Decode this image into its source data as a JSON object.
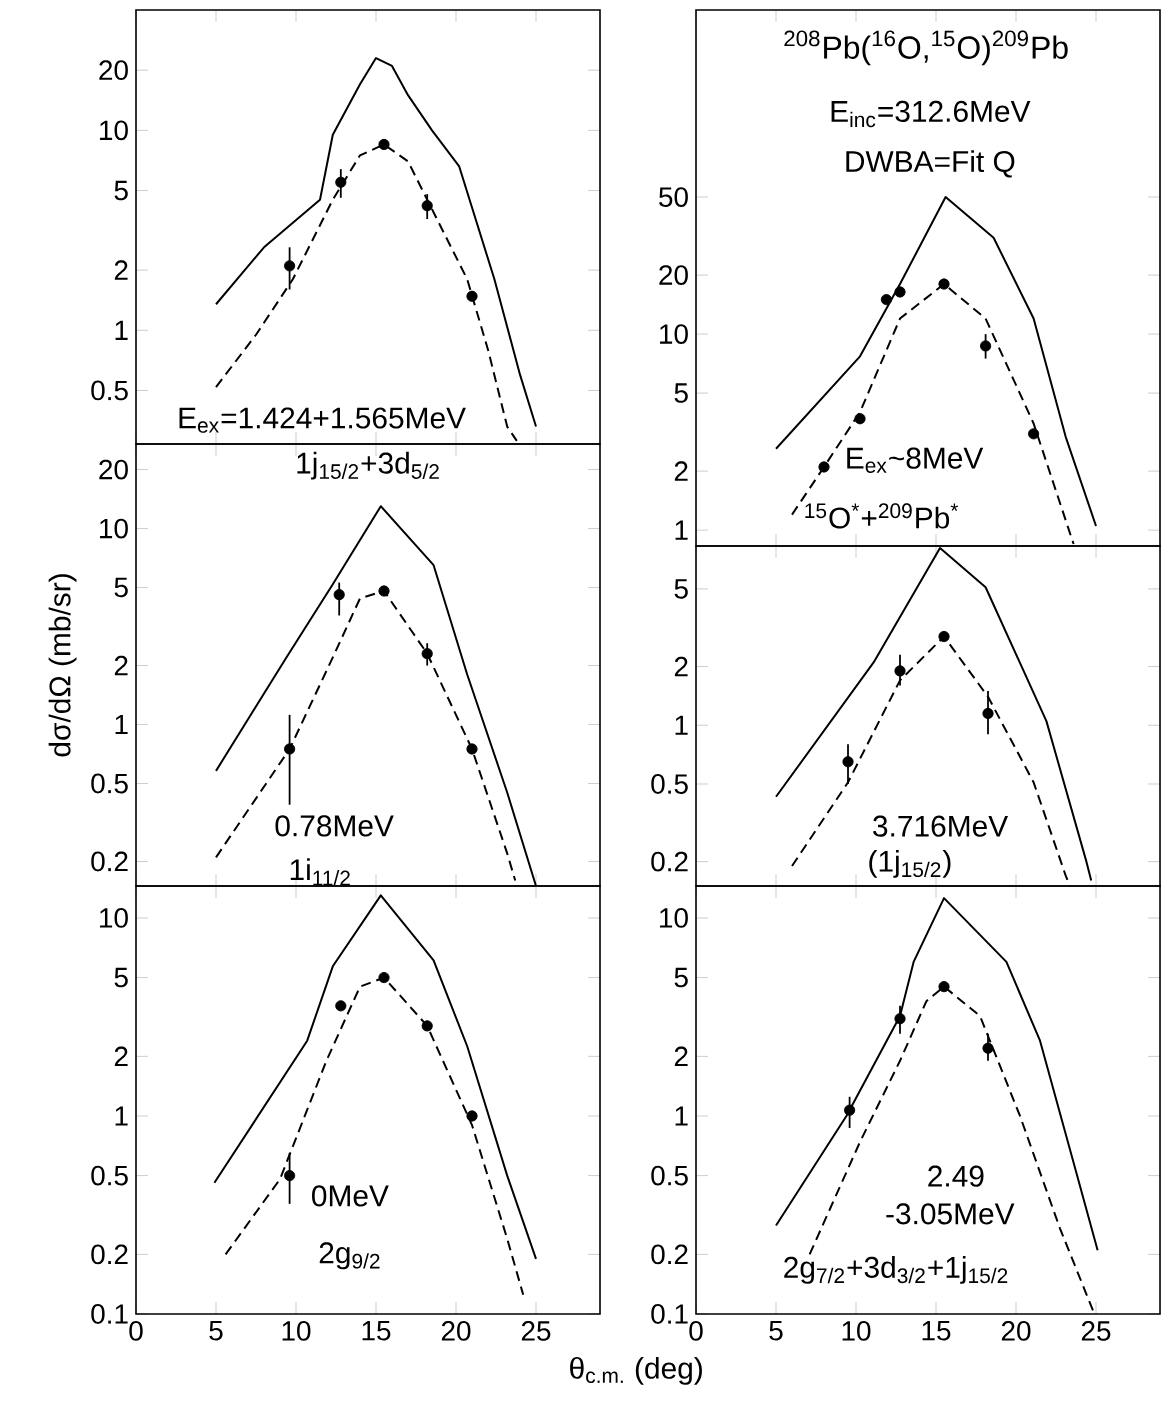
{
  "chart_data": [
    {
      "type": "line",
      "log": true,
      "xlim": [
        0,
        29
      ],
      "ylim": [
        0.27,
        40
      ],
      "xticks": [
        0,
        5,
        10,
        15,
        20,
        25
      ],
      "yticks": [
        0.5,
        1,
        2,
        5,
        10,
        20
      ],
      "tick_labels": "y",
      "annotations": [
        "E$_{ex}$=1.424+1.565MeV",
        "1j$_{15/2}$+3d$_{5/2}$"
      ],
      "series": [
        {
          "color": "#000000",
          "line_style": "solid",
          "x": [
            5,
            8,
            11.5,
            12.3,
            14,
            15,
            16,
            17,
            18.5,
            20.2,
            22.4,
            24,
            25
          ],
          "values": [
            1.35,
            2.6,
            4.5,
            9.5,
            17,
            23,
            21,
            15,
            10,
            6.6,
            1.8,
            0.6,
            0.33
          ]
        },
        {
          "color": "#000000",
          "line_style": "dashed",
          "x": [
            5,
            7.5,
            9.8,
            12.3,
            14,
            15.5,
            17,
            18.2,
            20.7,
            22,
            23.2,
            23.8
          ],
          "values": [
            0.52,
            0.95,
            1.8,
            4.5,
            7.5,
            8.5,
            7,
            4.5,
            1.8,
            0.8,
            0.33,
            0.28
          ]
        },
        {
          "type": "scatter",
          "color": "#000000",
          "marker": "circle",
          "x": [
            9.6,
            12.8,
            15.5,
            18.2,
            21
          ],
          "values": [
            2.1,
            5.5,
            8.5,
            4.2,
            1.48
          ],
          "errors": [
            [
              1.6,
              2.6
            ],
            [
              4.6,
              6.4
            ],
            null,
            [
              3.6,
              4.8
            ],
            null
          ]
        }
      ]
    },
    {
      "type": "line",
      "log": true,
      "title": "$^{208}$Pb($^{16}$O,$^{15}$O)$^{209}$Pb",
      "xlim": [
        0,
        29
      ],
      "ylim": [
        0.83,
        450
      ],
      "xticks": [
        0,
        5,
        10,
        15,
        20,
        25
      ],
      "yticks": [
        1,
        2,
        5,
        10,
        20,
        50
      ],
      "tick_labels": "y",
      "annotations": [
        "E$_{inc}$=312.6MeV",
        "DWBA=Fit Q",
        "E$_{ex}$~8MeV",
        "$^{15}$O$^{*}$+$^{209}$Pb$^{*}$"
      ],
      "series": [
        {
          "color": "#000000",
          "line_style": "solid",
          "x": [
            5,
            10.25,
            12.75,
            15.6,
            18.6,
            21.1,
            23.1,
            25
          ],
          "values": [
            2.6,
            7.7,
            18,
            50,
            31,
            12,
            3,
            1.05
          ]
        },
        {
          "color": "#000000",
          "line_style": "dashed",
          "x": [
            6,
            8,
            10.25,
            12.75,
            15.5,
            18.1,
            21.1,
            23.4,
            23.6
          ],
          "values": [
            1.2,
            2.1,
            4,
            12,
            18,
            12,
            3.5,
            0.95,
            0.85
          ]
        },
        {
          "type": "scatter",
          "color": "#000000",
          "marker": "circle",
          "x": [
            8,
            10.25,
            11.9,
            12.75,
            15.5,
            18.1,
            21.1
          ],
          "values": [
            2.1,
            3.7,
            15,
            16.4,
            18,
            8.7,
            3.1
          ],
          "errors": [
            null,
            null,
            null,
            null,
            null,
            [
              7.5,
              10
            ],
            null
          ]
        }
      ]
    },
    {
      "type": "line",
      "log": true,
      "ylabel": "dσ/dΩ (mb/sr)",
      "xlim": [
        0,
        29
      ],
      "ylim": [
        0.15,
        27
      ],
      "xticks": [
        0,
        5,
        10,
        15,
        20,
        25
      ],
      "yticks": [
        0.2,
        0.5,
        1,
        2,
        5,
        10,
        20
      ],
      "tick_labels": "y",
      "annotations": [
        "0.78MeV",
        "1i$_{11/2}$"
      ],
      "series": [
        {
          "color": "#000000",
          "line_style": "solid",
          "x": [
            5,
            9.4,
            12.3,
            15.3,
            18.6,
            20.7,
            23.2,
            25
          ],
          "values": [
            0.58,
            2.2,
            5.2,
            13,
            6.5,
            1.8,
            0.45,
            0.15
          ]
        },
        {
          "color": "#000000",
          "line_style": "dashed",
          "x": [
            5,
            9.6,
            12.3,
            14,
            15.5,
            18.2,
            21,
            23.2,
            23.7
          ],
          "values": [
            0.21,
            0.75,
            2.2,
            4.4,
            4.8,
            2.3,
            0.75,
            0.22,
            0.16
          ]
        },
        {
          "type": "scatter",
          "color": "#000000",
          "marker": "circle",
          "x": [
            9.6,
            12.7,
            15.5,
            18.2,
            21
          ],
          "values": [
            0.75,
            4.6,
            4.8,
            2.3,
            0.75
          ],
          "errors": [
            [
              0.39,
              1.12
            ],
            [
              3.6,
              5.3
            ],
            null,
            [
              2,
              2.6
            ],
            null
          ]
        }
      ]
    },
    {
      "type": "line",
      "log": true,
      "xlim": [
        0,
        29
      ],
      "ylim": [
        0.15,
        8.3
      ],
      "xticks": [
        0,
        5,
        10,
        15,
        20,
        25
      ],
      "yticks": [
        0.2,
        0.5,
        1,
        2,
        5
      ],
      "tick_labels": "y",
      "annotations": [
        "3.716MeV",
        "(1j$_{15/2}$)"
      ],
      "series": [
        {
          "color": "#000000",
          "line_style": "solid",
          "x": [
            5,
            11.1,
            15.25,
            18.1,
            21.9,
            24.4,
            24.7
          ],
          "values": [
            0.43,
            2.1,
            8.1,
            5.1,
            1.05,
            0.2,
            0.16
          ]
        },
        {
          "color": "#000000",
          "line_style": "dashed",
          "x": [
            6,
            9.5,
            12.75,
            15.5,
            18.25,
            21.1,
            23.1,
            23.3
          ],
          "values": [
            0.19,
            0.51,
            1.7,
            2.85,
            1.4,
            0.51,
            0.17,
            0.155
          ]
        },
        {
          "type": "scatter",
          "color": "#000000",
          "marker": "circle",
          "x": [
            9.5,
            12.75,
            15.5,
            18.25
          ],
          "values": [
            0.65,
            1.9,
            2.85,
            1.15
          ],
          "errors": [
            [
              0.5,
              0.8
            ],
            [
              1.6,
              2.3
            ],
            null,
            [
              0.9,
              1.5
            ]
          ]
        }
      ]
    },
    {
      "type": "line",
      "log": true,
      "xlabel": "θ$_{c.m.}$ (deg)",
      "xlim": [
        0,
        29
      ],
      "ylim": [
        0.1,
        14.5
      ],
      "xticks": [
        0,
        5,
        10,
        15,
        20,
        25
      ],
      "yticks": [
        0.1,
        0.2,
        0.5,
        1,
        2,
        5,
        10
      ],
      "annotations": [
        "0MeV",
        "2g$_{9/2}$"
      ],
      "series": [
        {
          "color": "#000000",
          "line_style": "solid",
          "x": [
            4.9,
            10.7,
            12.3,
            15.3,
            18.6,
            20.7,
            23.2,
            25
          ],
          "values": [
            0.46,
            2.4,
            5.7,
            13,
            6.1,
            2.25,
            0.5,
            0.19
          ]
        },
        {
          "color": "#000000",
          "line_style": "dashed",
          "x": [
            5.6,
            9,
            11.9,
            14,
            15.5,
            18.2,
            21,
            23.2,
            24.2
          ],
          "values": [
            0.2,
            0.48,
            1.9,
            4.5,
            5,
            2.85,
            0.9,
            0.24,
            0.125
          ]
        },
        {
          "type": "scatter",
          "color": "#000000",
          "marker": "circle",
          "x": [
            9.6,
            12.8,
            15.5,
            18.2,
            21
          ],
          "values": [
            0.5,
            3.6,
            5,
            2.85,
            1
          ],
          "errors": [
            [
              0.36,
              0.65
            ],
            null,
            null,
            null,
            null
          ]
        }
      ]
    },
    {
      "type": "line",
      "log": true,
      "xlim": [
        0,
        29
      ],
      "ylim": [
        0.1,
        14.5
      ],
      "xticks": [
        0,
        5,
        10,
        15,
        20,
        25
      ],
      "yticks": [
        0.1,
        0.2,
        0.5,
        1,
        2,
        5,
        10
      ],
      "annotations": [
        "2.49",
        "-3.05MeV",
        "2g$_{7/2}$+3d$_{3/2}$+1j$_{15/2}$"
      ],
      "series": [
        {
          "color": "#000000",
          "line_style": "solid",
          "x": [
            5,
            9.4,
            12.75,
            13.6,
            15.5,
            19.4,
            21.5,
            23.6,
            25.1
          ],
          "values": [
            0.28,
            1,
            3.2,
            6,
            12.6,
            6,
            2.4,
            0.58,
            0.21
          ]
        },
        {
          "color": "#000000",
          "line_style": "dashed",
          "x": [
            7.1,
            10.25,
            12.75,
            14.4,
            15.5,
            17.75,
            20.25,
            22.75,
            24.9
          ],
          "values": [
            0.2,
            0.74,
            1.9,
            3.8,
            4.5,
            3.2,
            1,
            0.27,
            0.1
          ]
        },
        {
          "type": "scatter",
          "color": "#000000",
          "marker": "circle",
          "x": [
            9.6,
            12.75,
            15.5,
            18.25
          ],
          "values": [
            1.07,
            3.1,
            4.5,
            2.2
          ],
          "errors": [
            [
              0.87,
              1.25
            ],
            [
              2.6,
              3.6
            ],
            null,
            [
              1.9,
              2.6
            ]
          ]
        }
      ]
    }
  ]
}
